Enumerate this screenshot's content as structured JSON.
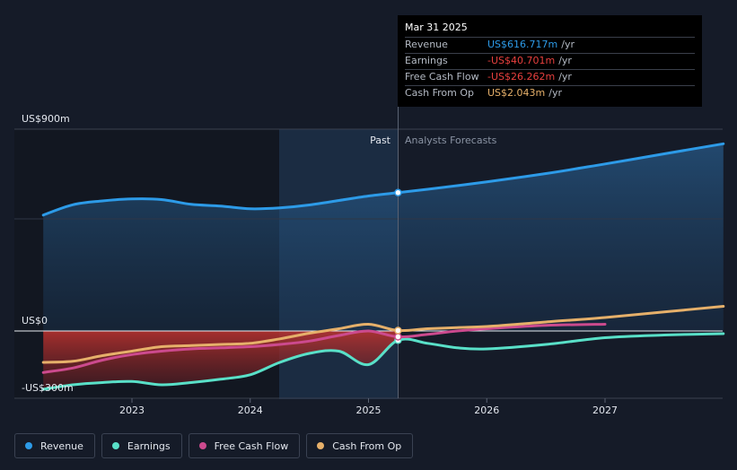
{
  "chart_data": {
    "type": "line",
    "y_top_label": "US$900m",
    "y_zero_label": "US$0",
    "y_bottom_label": "-US$300m",
    "ylim": [
      -300,
      900
    ],
    "x_ticks": [
      "2023",
      "2024",
      "2025",
      "2026",
      "2027"
    ],
    "past_label": "Past",
    "forecast_label": "Analysts Forecasts",
    "tooltip": {
      "date": "Mar 31 2025",
      "rows": [
        {
          "label": "Revenue",
          "value": "US$616.717m",
          "unit": "/yr",
          "color": "#2d9be8"
        },
        {
          "label": "Earnings",
          "value": "-US$40.701m",
          "unit": "/yr",
          "color": "#e8403e"
        },
        {
          "label": "Free Cash Flow",
          "value": "-US$26.262m",
          "unit": "/yr",
          "color": "#e8403e"
        },
        {
          "label": "Cash From Op",
          "value": "US$2.043m",
          "unit": "/yr",
          "color": "#e6b06a"
        }
      ]
    },
    "series": [
      {
        "name": "Revenue",
        "color": "#2d9be8",
        "points": [
          [
            2022.25,
            517
          ],
          [
            2022.5,
            563
          ],
          [
            2022.75,
            580
          ],
          [
            2023.0,
            589
          ],
          [
            2023.25,
            586
          ],
          [
            2023.5,
            565
          ],
          [
            2023.75,
            557
          ],
          [
            2024.0,
            545
          ],
          [
            2024.25,
            549
          ],
          [
            2024.5,
            562
          ],
          [
            2024.75,
            582
          ],
          [
            2025.0,
            602
          ],
          [
            2025.25,
            617
          ],
          [
            2025.5,
            632
          ],
          [
            2025.75,
            648
          ],
          [
            2026.0,
            665
          ],
          [
            2026.5,
            702
          ],
          [
            2027.0,
            745
          ],
          [
            2027.5,
            790
          ],
          [
            2028.0,
            835
          ]
        ]
      },
      {
        "name": "Earnings",
        "color": "#59e0c8",
        "points": [
          [
            2022.25,
            -260
          ],
          [
            2022.5,
            -240
          ],
          [
            2022.75,
            -230
          ],
          [
            2023.0,
            -225
          ],
          [
            2023.25,
            -240
          ],
          [
            2023.5,
            -230
          ],
          [
            2023.75,
            -215
          ],
          [
            2024.0,
            -195
          ],
          [
            2024.25,
            -140
          ],
          [
            2024.5,
            -100
          ],
          [
            2024.75,
            -90
          ],
          [
            2025.0,
            -150
          ],
          [
            2025.25,
            -41
          ],
          [
            2025.5,
            -55
          ],
          [
            2025.75,
            -75
          ],
          [
            2026.0,
            -80
          ],
          [
            2026.5,
            -60
          ],
          [
            2027.0,
            -30
          ],
          [
            2027.5,
            -18
          ],
          [
            2028.0,
            -12
          ]
        ]
      },
      {
        "name": "Free Cash Flow",
        "color": "#cc4a8e",
        "points": [
          [
            2022.25,
            -185
          ],
          [
            2022.5,
            -165
          ],
          [
            2022.75,
            -130
          ],
          [
            2023.0,
            -105
          ],
          [
            2023.25,
            -90
          ],
          [
            2023.5,
            -80
          ],
          [
            2023.75,
            -75
          ],
          [
            2024.0,
            -70
          ],
          [
            2024.25,
            -60
          ],
          [
            2024.5,
            -45
          ],
          [
            2024.75,
            -20
          ],
          [
            2025.0,
            0
          ],
          [
            2025.25,
            -26
          ],
          [
            2025.5,
            -15
          ],
          [
            2025.75,
            0
          ],
          [
            2026.0,
            10
          ],
          [
            2026.5,
            25
          ],
          [
            2027.0,
            30
          ]
        ]
      },
      {
        "name": "Cash From Op",
        "color": "#e6b06a",
        "points": [
          [
            2022.25,
            -140
          ],
          [
            2022.5,
            -135
          ],
          [
            2022.75,
            -110
          ],
          [
            2023.0,
            -90
          ],
          [
            2023.25,
            -70
          ],
          [
            2023.5,
            -65
          ],
          [
            2023.75,
            -60
          ],
          [
            2024.0,
            -55
          ],
          [
            2024.25,
            -35
          ],
          [
            2024.5,
            -10
          ],
          [
            2024.75,
            10
          ],
          [
            2025.0,
            30
          ],
          [
            2025.25,
            2
          ],
          [
            2025.5,
            10
          ],
          [
            2025.75,
            15
          ],
          [
            2026.0,
            20
          ],
          [
            2026.5,
            40
          ],
          [
            2027.0,
            60
          ],
          [
            2027.5,
            85
          ],
          [
            2028.0,
            110
          ]
        ]
      }
    ]
  },
  "legend": [
    {
      "label": "Revenue",
      "color": "#2d9be8"
    },
    {
      "label": "Earnings",
      "color": "#59e0c8"
    },
    {
      "label": "Free Cash Flow",
      "color": "#cc4a8e"
    },
    {
      "label": "Cash From Op",
      "color": "#e6b06a"
    }
  ]
}
